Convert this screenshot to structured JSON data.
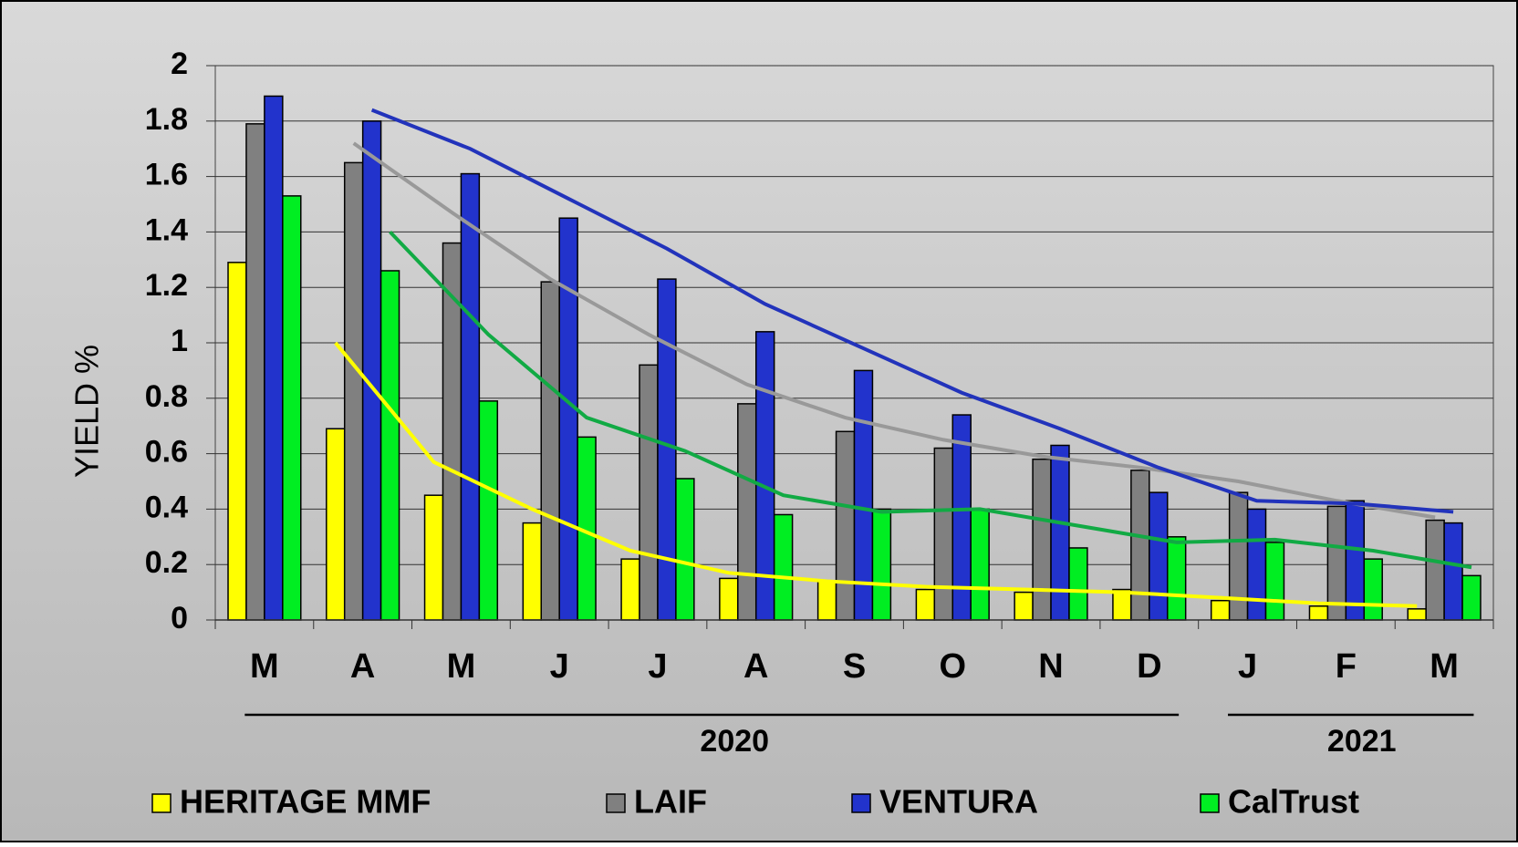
{
  "chart_data": {
    "type": "bar",
    "y_label": "YIELD %",
    "categories": [
      "M",
      "A",
      "M",
      "J",
      "J",
      "A",
      "S",
      "O",
      "N",
      "D",
      "J",
      "F",
      "M"
    ],
    "year_groups": [
      "2020",
      "2021"
    ],
    "series": [
      {
        "name": "HERITAGE MMF",
        "color": "#ffff00",
        "values": [
          1.29,
          0.69,
          0.45,
          0.35,
          0.22,
          0.15,
          0.14,
          0.11,
          0.1,
          0.11,
          0.07,
          0.05,
          0.04
        ]
      },
      {
        "name": "LAIF",
        "color": "#808080",
        "values": [
          1.79,
          1.65,
          1.36,
          1.22,
          0.92,
          0.78,
          0.68,
          0.62,
          0.58,
          0.54,
          0.46,
          0.41,
          0.36
        ]
      },
      {
        "name": "VENTURA",
        "color": "#2233cc",
        "values": [
          1.89,
          1.8,
          1.61,
          1.45,
          1.23,
          1.04,
          0.9,
          0.74,
          0.63,
          0.46,
          0.4,
          0.43,
          0.35
        ]
      },
      {
        "name": "CalTrust",
        "color": "#00ee22",
        "values": [
          1.53,
          1.26,
          0.79,
          0.66,
          0.51,
          0.38,
          0.4,
          0.4,
          0.26,
          0.3,
          0.28,
          0.22,
          0.16
        ]
      }
    ],
    "trend_lines": [
      {
        "color": "#ffff00",
        "values": [
          null,
          1.0,
          0.57,
          0.4,
          0.25,
          0.17,
          0.14,
          0.12,
          0.11,
          0.1,
          0.08,
          0.06,
          0.05
        ]
      },
      {
        "color": "#999999",
        "values": [
          null,
          1.72,
          1.47,
          1.23,
          1.03,
          0.85,
          0.73,
          0.65,
          0.59,
          0.55,
          0.5,
          0.43,
          0.37
        ]
      },
      {
        "color": "#2233bb",
        "values": [
          null,
          1.84,
          1.7,
          1.52,
          1.34,
          1.14,
          0.98,
          0.82,
          0.69,
          0.55,
          0.43,
          0.42,
          0.39
        ]
      },
      {
        "color": "#11aa44",
        "values": [
          null,
          1.4,
          1.03,
          0.73,
          0.61,
          0.45,
          0.39,
          0.4,
          0.34,
          0.28,
          0.29,
          0.25,
          0.19
        ]
      }
    ],
    "ylim": [
      0,
      2
    ],
    "yticks": [
      0,
      0.2,
      0.4,
      0.6,
      0.8,
      1,
      1.2,
      1.4,
      1.6,
      1.8,
      2
    ],
    "grid": true
  }
}
